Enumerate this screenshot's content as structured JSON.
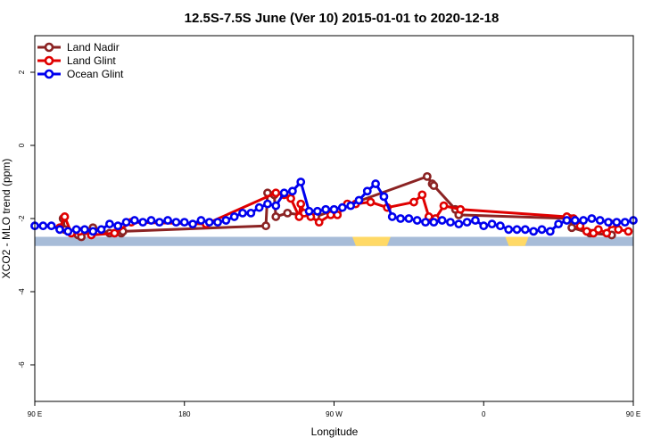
{
  "chart_data": {
    "type": "line",
    "title": "12.5S-7.5S June (Ver 10)   2015-01-01 to 2020-12-18",
    "xlabel": "Longitude",
    "ylabel": "XCO2 - MLO trend (ppm)",
    "xlim": [
      90,
      450
    ],
    "ylim": [
      -7,
      3
    ],
    "x_ticks": [
      {
        "value": 90,
        "label": "90 E"
      },
      {
        "value": 180,
        "label": "180"
      },
      {
        "value": 270,
        "label": "90 W"
      },
      {
        "value": 360,
        "label": "0"
      },
      {
        "value": 450,
        "label": "90 E"
      },
      {
        "value": 540,
        "label": "180"
      }
    ],
    "y_ticks": [
      {
        "value": 2,
        "label": "2"
      },
      {
        "value": 0,
        "label": "0"
      },
      {
        "value": -2,
        "label": "-2"
      },
      {
        "value": -4,
        "label": "-4"
      },
      {
        "value": -6,
        "label": "-6"
      }
    ],
    "grid": false,
    "legend_position": "top-left",
    "land_band": {
      "y_top": -2.5,
      "y_bottom": -2.75,
      "ocean_color": "#a7bcd8",
      "land_color": "#ffd966",
      "land_segments": [
        [
          281,
          304
        ],
        [
          373,
          387
        ]
      ]
    },
    "series": [
      {
        "name": "Land Nadir",
        "color": "#8b2323",
        "x": [
          107,
          108,
          116,
          118,
          125,
          135,
          142,
          143,
          229,
          230,
          234,
          235,
          242,
          259,
          326,
          329,
          330,
          343,
          345,
          412,
          413,
          424,
          437
        ],
        "y": [
          -2.0,
          -2.3,
          -2.45,
          -2.5,
          -2.25,
          -2.4,
          -2.4,
          -2.35,
          -2.2,
          -1.3,
          -1.35,
          -1.95,
          -1.85,
          -1.95,
          -0.85,
          -1.05,
          -1.1,
          -1.75,
          -1.9,
          -2.0,
          -2.25,
          -2.4,
          -2.45
        ]
      },
      {
        "name": "Land Glint",
        "color": "#e00000",
        "x": [
          105,
          108,
          112,
          117,
          124,
          138,
          148,
          193,
          235,
          240,
          244,
          249,
          250,
          252,
          256,
          261,
          268,
          272,
          278,
          283,
          292,
          302,
          318,
          323,
          327,
          331,
          336,
          346,
          410,
          414,
          418,
          422,
          426,
          429,
          434,
          437,
          441,
          447
        ],
        "y": [
          -2.25,
          -1.95,
          -2.4,
          -2.35,
          -2.45,
          -2.4,
          -2.1,
          -2.15,
          -1.3,
          -1.35,
          -1.45,
          -1.95,
          -1.6,
          -1.85,
          -1.95,
          -2.1,
          -1.9,
          -1.9,
          -1.6,
          -1.6,
          -1.55,
          -1.7,
          -1.55,
          -1.35,
          -1.95,
          -2.0,
          -1.65,
          -1.75,
          -1.95,
          -2.0,
          -2.2,
          -2.35,
          -2.4,
          -2.3,
          -2.4,
          -2.15,
          -2.3,
          -2.35
        ]
      },
      {
        "name": "Ocean Glint",
        "color": "#0000ee",
        "x": [
          90,
          95,
          100,
          105,
          110,
          115,
          120,
          125,
          130,
          135,
          140,
          145,
          150,
          155,
          160,
          165,
          170,
          175,
          180,
          185,
          190,
          195,
          200,
          205,
          210,
          215,
          220,
          225,
          230,
          235,
          240,
          245,
          250,
          255,
          260,
          265,
          270,
          275,
          280,
          285,
          290,
          295,
          300,
          305,
          310,
          315,
          320,
          325,
          330,
          335,
          340,
          345,
          350,
          355,
          360,
          365,
          370,
          375,
          380,
          385,
          390,
          395,
          400,
          405,
          410,
          415,
          420,
          425,
          430,
          435,
          440,
          445,
          450
        ],
        "y": [
          -2.2,
          -2.2,
          -2.2,
          -2.3,
          -2.35,
          -2.3,
          -2.3,
          -2.35,
          -2.3,
          -2.15,
          -2.2,
          -2.1,
          -2.05,
          -2.1,
          -2.05,
          -2.1,
          -2.05,
          -2.1,
          -2.1,
          -2.15,
          -2.05,
          -2.1,
          -2.1,
          -2.05,
          -1.95,
          -1.85,
          -1.85,
          -1.7,
          -1.6,
          -1.65,
          -1.3,
          -1.25,
          -1.0,
          -1.8,
          -1.8,
          -1.75,
          -1.75,
          -1.7,
          -1.65,
          -1.5,
          -1.25,
          -1.05,
          -1.4,
          -1.95,
          -2.0,
          -2.0,
          -2.05,
          -2.1,
          -2.1,
          -2.05,
          -2.1,
          -2.15,
          -2.1,
          -2.05,
          -2.2,
          -2.15,
          -2.2,
          -2.3,
          -2.3,
          -2.3,
          -2.35,
          -2.3,
          -2.35,
          -2.15,
          -2.05,
          -2.05,
          -2.05,
          -2.0,
          -2.05,
          -2.1,
          -2.1,
          -2.1,
          -2.05
        ]
      }
    ]
  }
}
